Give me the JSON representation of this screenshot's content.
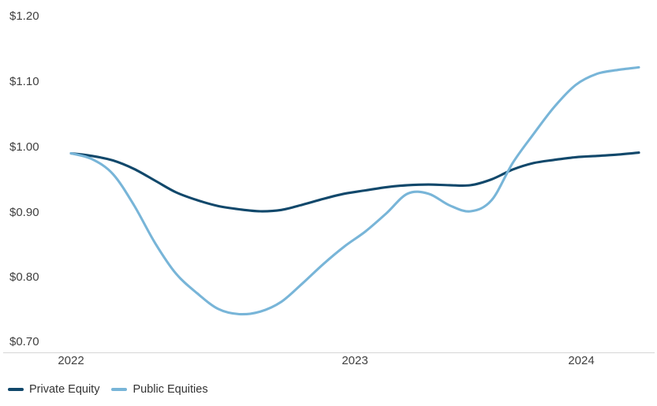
{
  "chart_data": {
    "type": "line",
    "title": "",
    "y_axis": {
      "min": 0.7,
      "max": 1.2,
      "tick_step": 0.1,
      "prefix": "$",
      "tick_labels": [
        "$1.20",
        "$1.10",
        "$1.00",
        "$0.90",
        "$0.80",
        "$0.70"
      ]
    },
    "x_axis": {
      "tick_labels": [
        "2022",
        "2023",
        "2024"
      ],
      "frequency_of_points": "monthly",
      "first_point_label": "2022"
    },
    "grid": false,
    "legend_position": "bottom-left",
    "series": [
      {
        "name": "Private Equity",
        "color": "#11486b",
        "values": [
          0.99,
          0.986,
          0.979,
          0.966,
          0.948,
          0.93,
          0.918,
          0.909,
          0.904,
          0.901,
          0.903,
          0.911,
          0.92,
          0.928,
          0.933,
          0.938,
          0.941,
          0.942,
          0.941,
          0.941,
          0.95,
          0.965,
          0.975,
          0.98,
          0.984,
          0.986,
          0.988,
          0.991
        ]
      },
      {
        "name": "Public Equities",
        "color": "#78b5d8",
        "values": [
          0.99,
          0.981,
          0.958,
          0.91,
          0.852,
          0.805,
          0.775,
          0.751,
          0.743,
          0.747,
          0.762,
          0.79,
          0.82,
          0.847,
          0.87,
          0.898,
          0.928,
          0.928,
          0.91,
          0.901,
          0.918,
          0.975,
          1.02,
          1.062,
          1.095,
          1.112,
          1.118,
          1.122
        ]
      }
    ],
    "axis_line_color": "#d6d6d6",
    "text_color": "#404040"
  }
}
